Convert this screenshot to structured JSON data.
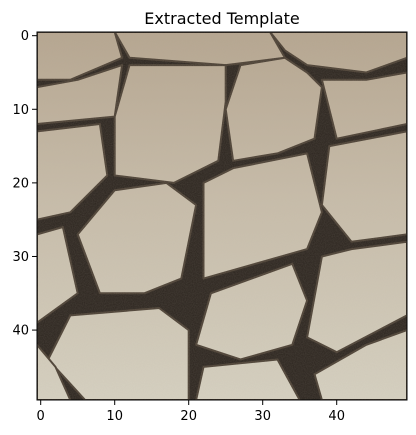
{
  "chart_data": {
    "type": "image",
    "title": "Extracted Template",
    "xlabel": "",
    "ylabel": "",
    "image_size": [
      50,
      50
    ],
    "x_ticks": [
      0,
      10,
      20,
      30,
      40
    ],
    "y_ticks": [
      0,
      10,
      20,
      30,
      40
    ],
    "xlim": [
      -0.5,
      49.5
    ],
    "ylim": [
      49.5,
      -0.5
    ],
    "grid": false,
    "legend": "none",
    "colors": {
      "tile_light": "#d6d1c1",
      "tile_tan": "#b5a58f",
      "grout_dark": "#2b241e",
      "axis": "#000000"
    },
    "tile_polygons": [
      {
        "points": [
          [
            -0.5,
            -0.5
          ],
          [
            10,
            -0.5
          ],
          [
            11,
            3
          ],
          [
            4,
            6
          ],
          [
            -0.5,
            6
          ]
        ]
      },
      {
        "points": [
          [
            10,
            -0.5
          ],
          [
            31,
            -0.5
          ],
          [
            33,
            3
          ],
          [
            25,
            4
          ],
          [
            12,
            3
          ]
        ]
      },
      {
        "points": [
          [
            31,
            -0.5
          ],
          [
            49.5,
            -0.5
          ],
          [
            49.5,
            3
          ],
          [
            44,
            5
          ],
          [
            36,
            4
          ],
          [
            33,
            2
          ]
        ]
      },
      {
        "points": [
          [
            -0.5,
            7
          ],
          [
            5,
            6
          ],
          [
            11,
            4
          ],
          [
            10,
            11
          ],
          [
            -0.5,
            12
          ]
        ]
      },
      {
        "points": [
          [
            12,
            4
          ],
          [
            25,
            4
          ],
          [
            25,
            9
          ],
          [
            24,
            17
          ],
          [
            18,
            20
          ],
          [
            10,
            19
          ],
          [
            10,
            11
          ]
        ]
      },
      {
        "points": [
          [
            27,
            4
          ],
          [
            33,
            3
          ],
          [
            36,
            5
          ],
          [
            38,
            7
          ],
          [
            37,
            14
          ],
          [
            32,
            16
          ],
          [
            26,
            17
          ],
          [
            25,
            10
          ]
        ]
      },
      {
        "points": [
          [
            38,
            6
          ],
          [
            44,
            6
          ],
          [
            49.5,
            5
          ],
          [
            49.5,
            12
          ],
          [
            40,
            14
          ]
        ]
      },
      {
        "points": [
          [
            -0.5,
            13
          ],
          [
            8,
            12
          ],
          [
            9,
            19
          ],
          [
            4,
            24
          ],
          [
            -0.5,
            25
          ]
        ]
      },
      {
        "points": [
          [
            39,
            15
          ],
          [
            49.5,
            13
          ],
          [
            49.5,
            27
          ],
          [
            42,
            28
          ],
          [
            38,
            23
          ]
        ]
      },
      {
        "points": [
          [
            10,
            21
          ],
          [
            17,
            20
          ],
          [
            21,
            23
          ],
          [
            19,
            33
          ],
          [
            14,
            35
          ],
          [
            8,
            35
          ],
          [
            5,
            27
          ]
        ]
      },
      {
        "points": [
          [
            22,
            20
          ],
          [
            26,
            18
          ],
          [
            36,
            16
          ],
          [
            38,
            24
          ],
          [
            36,
            29
          ],
          [
            22,
            33
          ]
        ]
      },
      {
        "points": [
          [
            -0.5,
            27
          ],
          [
            3,
            26
          ],
          [
            5,
            35
          ],
          [
            -0.5,
            39
          ]
        ]
      },
      {
        "points": [
          [
            38,
            30
          ],
          [
            42,
            29
          ],
          [
            49.5,
            28
          ],
          [
            49.5,
            38
          ],
          [
            40,
            43
          ],
          [
            36,
            41
          ]
        ]
      },
      {
        "points": [
          [
            23,
            35
          ],
          [
            34,
            31
          ],
          [
            36,
            36
          ],
          [
            34,
            42
          ],
          [
            27,
            44
          ],
          [
            21,
            42
          ]
        ]
      },
      {
        "points": [
          [
            4,
            38
          ],
          [
            16,
            37
          ],
          [
            20,
            40
          ],
          [
            20,
            49.5
          ],
          [
            6,
            49.5
          ],
          [
            1,
            44
          ]
        ]
      },
      {
        "points": [
          [
            -0.5,
            42
          ],
          [
            2,
            45
          ],
          [
            4,
            49.5
          ],
          [
            -0.5,
            49.5
          ]
        ]
      },
      {
        "points": [
          [
            22,
            45
          ],
          [
            32,
            44
          ],
          [
            35,
            49.5
          ],
          [
            21,
            49.5
          ]
        ]
      },
      {
        "points": [
          [
            37,
            46
          ],
          [
            44,
            42
          ],
          [
            49.5,
            40
          ],
          [
            49.5,
            49.5
          ],
          [
            38,
            49.5
          ]
        ]
      }
    ]
  }
}
